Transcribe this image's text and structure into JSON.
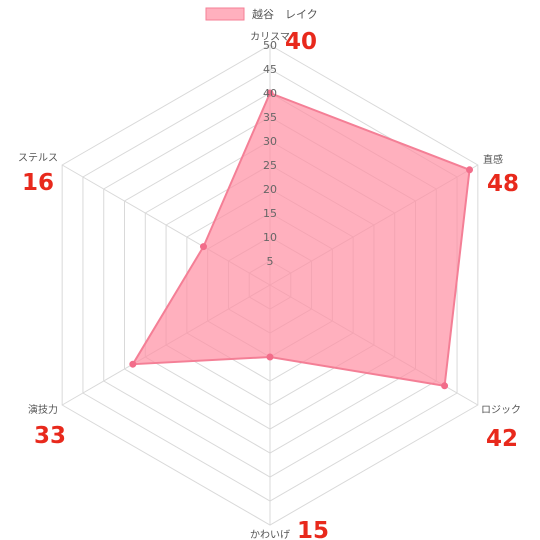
{
  "chart_data": {
    "type": "radar",
    "series": [
      {
        "name": "越谷　レイク",
        "values": [
          40,
          48,
          42,
          15,
          33,
          16
        ]
      }
    ],
    "axes": [
      "カリスマ",
      "直感",
      "ロジック",
      "かわいげ",
      "演技力",
      "ステルス"
    ],
    "value_labels": [
      "40",
      "48",
      "42",
      "15",
      "33",
      "16"
    ],
    "ticks": [
      "5",
      "10",
      "15",
      "20",
      "25",
      "30",
      "35",
      "40",
      "45",
      "50"
    ],
    "r_range": [
      0,
      50
    ],
    "grid": true,
    "legend_position": "top",
    "colors": {
      "fill": "#ff8fa3",
      "stroke": "#f47f96",
      "point": "#f26d8a",
      "grid": "#d9d9d9",
      "value_label": "#e8291c"
    }
  }
}
